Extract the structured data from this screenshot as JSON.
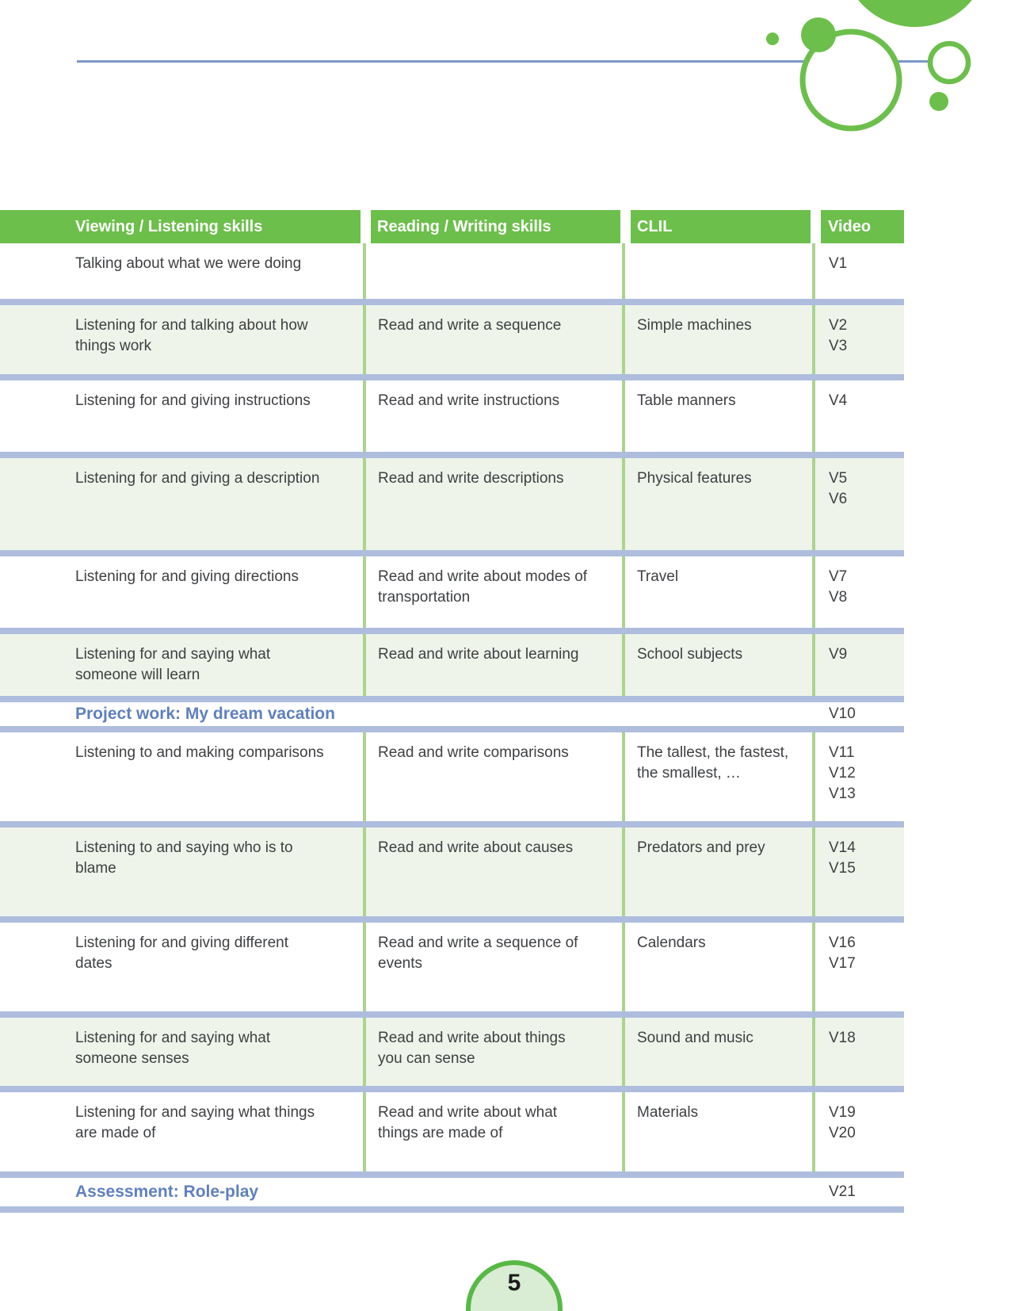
{
  "page": {
    "number": "5"
  },
  "colors": {
    "accent_green": "#6cbf4b",
    "row_green": "#eef4e9",
    "separator_blue": "#aebddd",
    "heading_blue": "#5f80bf",
    "top_line_blue": "#7b97c6",
    "column_line_green": "#abd48e",
    "page_circle_fill": "#d9ecd4",
    "page_circle_stroke": "#57b945"
  },
  "table": {
    "headers": [
      "Viewing / Listening skills",
      "Reading / Writing skills",
      "CLIL",
      "Video"
    ],
    "rows": [
      {
        "type": "skills",
        "viewing": "Talking about what we were doing",
        "reading": "",
        "clil": "",
        "videos": [
          "V1"
        ]
      },
      {
        "type": "skills",
        "viewing": "Listening for and talking about how\nthings work",
        "reading": "Read and write a sequence",
        "clil": "Simple machines",
        "videos": [
          "V2",
          "V3"
        ]
      },
      {
        "type": "skills",
        "viewing": "Listening for and giving instructions",
        "reading": "Read and write instructions",
        "clil": "Table manners",
        "videos": [
          "V4"
        ]
      },
      {
        "type": "skills",
        "viewing": "Listening for and giving a description",
        "reading": "Read and write descriptions",
        "clil": "Physical features",
        "videos": [
          "V5",
          "V6"
        ]
      },
      {
        "type": "skills",
        "viewing": "Listening for and giving directions",
        "reading": "Read and write about modes of\ntransportation",
        "clil": "Travel",
        "videos": [
          "V7",
          "V8"
        ]
      },
      {
        "type": "skills",
        "viewing": "Listening for and saying what\nsomeone will learn",
        "reading": "Read and write about learning",
        "clil": "School subjects",
        "videos": [
          "V9"
        ]
      },
      {
        "type": "section",
        "label": "Project work: My dream vacation",
        "videos": [
          "V10"
        ]
      },
      {
        "type": "skills",
        "viewing": "Listening to and making comparisons",
        "reading": "Read and write comparisons",
        "clil": "The tallest, the fastest,\nthe smallest, …",
        "videos": [
          "V11",
          "V12",
          "V13"
        ]
      },
      {
        "type": "skills",
        "viewing": "Listening to and saying who is to\nblame",
        "reading": "Read and write about causes",
        "clil": "Predators and prey",
        "videos": [
          "V14",
          "V15"
        ]
      },
      {
        "type": "skills",
        "viewing": "Listening for and giving different\ndates",
        "reading": "Read and write a sequence of\nevents",
        "clil": "Calendars",
        "videos": [
          "V16",
          "V17"
        ]
      },
      {
        "type": "skills",
        "viewing": "Listening for and saying what\nsomeone senses",
        "reading": "Read and write about things\nyou can sense",
        "clil": "Sound and music",
        "videos": [
          "V18"
        ]
      },
      {
        "type": "skills",
        "viewing": "Listening for and saying what things\nare made of",
        "reading": "Read and write about what\nthings are made of",
        "clil": "Materials",
        "videos": [
          "V19",
          "V20"
        ]
      },
      {
        "type": "section",
        "label": "Assessment: Role-play",
        "videos": [
          "V21"
        ]
      }
    ]
  }
}
